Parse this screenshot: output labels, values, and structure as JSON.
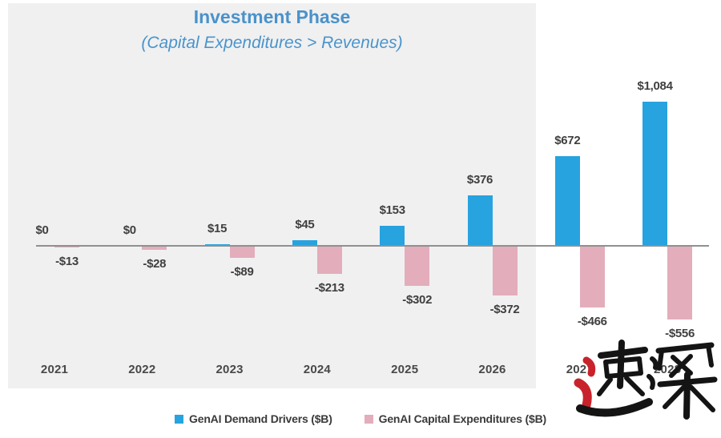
{
  "chart": {
    "title": "Investment Phase",
    "subtitle": "(Capital Expenditures > Revenues)",
    "title_color": "#4a92c9",
    "panel_color": "#f0f0f1",
    "axis_color": "#909090"
  },
  "chart_data": {
    "type": "bar",
    "title": "Investment Phase",
    "subtitle": "(Capital Expenditures > Revenues)",
    "categories": [
      "2021",
      "2022",
      "2023",
      "2024",
      "2025",
      "2026",
      "2027",
      "2028"
    ],
    "series": [
      {
        "name": "GenAI Demand Drivers ($B)",
        "color": "#27a3e0",
        "values": [
          0,
          0,
          15,
          45,
          153,
          376,
          672,
          1084
        ],
        "labels": [
          "$0",
          "$0",
          "$15",
          "$45",
          "$153",
          "$376",
          "$672",
          "$1,084"
        ]
      },
      {
        "name": "GenAI Capital Expenditures ($B)",
        "color": "#e3adbb",
        "values": [
          -13,
          -28,
          -89,
          -213,
          -302,
          -372,
          -466,
          -556
        ],
        "labels": [
          "-$13",
          "-$28",
          "-$89",
          "-$213",
          "-$302",
          "-$372",
          "-$466",
          "-$556"
        ]
      }
    ],
    "ylim": [
      -556,
      1084
    ],
    "baseline": 0,
    "grid": false,
    "legend_position": "bottom",
    "value_labels": true,
    "highlight_region": "gray panel behind 2021-2026 (investment phase)"
  },
  "legend": {
    "items": [
      {
        "label": "GenAI Demand Drivers ($B)",
        "color": "#27a3e0"
      },
      {
        "label": "GenAI Capital Expenditures ($B)",
        "color": "#e3adbb"
      }
    ]
  },
  "watermark": {
    "text": "速深",
    "black": "#141414",
    "red": "#c8232c"
  }
}
